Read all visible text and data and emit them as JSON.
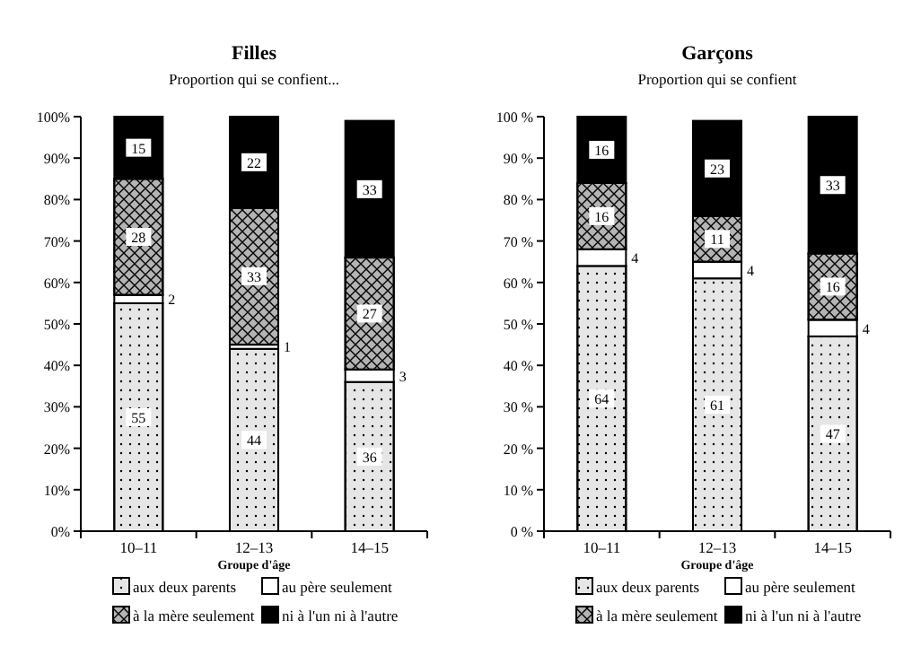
{
  "chart_data": [
    {
      "type": "bar",
      "stacked": true,
      "title": "Filles",
      "subtitle": "Proportion qui se confient...",
      "xlabel": "Groupe d'âge",
      "categories": [
        "10–11",
        "12–13",
        "14–15"
      ],
      "ylim": [
        0,
        100
      ],
      "yticks": [
        {
          "value": 0,
          "label": "0%"
        },
        {
          "value": 10,
          "label": "10%"
        },
        {
          "value": 20,
          "label": "20%"
        },
        {
          "value": 30,
          "label": "30%"
        },
        {
          "value": 40,
          "label": "40%"
        },
        {
          "value": 50,
          "label": "50%"
        },
        {
          "value": 60,
          "label": "60%"
        },
        {
          "value": 70,
          "label": "70%"
        },
        {
          "value": 80,
          "label": "80%"
        },
        {
          "value": 90,
          "label": "90%"
        },
        {
          "value": 100,
          "label": "100%"
        }
      ],
      "legend": "bottom",
      "series": [
        {
          "name": "aux deux parents",
          "color": "#e6e6e6",
          "values": [
            55,
            44,
            36
          ],
          "value_labels": [
            "55",
            "44",
            "36"
          ]
        },
        {
          "name": "au père seulement",
          "color": "#ffffff",
          "values": [
            2,
            1,
            3
          ],
          "value_labels": [
            "2",
            "1",
            "3"
          ]
        },
        {
          "name": "à la mère seulement",
          "color": "#b4b4b4",
          "values": [
            28,
            33,
            27
          ],
          "value_labels": [
            "28",
            "33",
            "27"
          ]
        },
        {
          "name": "ni à l'un ni à l'autre",
          "color": "#000000",
          "values": [
            15,
            22,
            33
          ],
          "value_labels": [
            "15",
            "22",
            "33"
          ]
        }
      ]
    },
    {
      "type": "bar",
      "stacked": true,
      "title": "Garçons",
      "subtitle": "Proportion qui se confient",
      "xlabel": "Groupe d'âge",
      "categories": [
        "10–11",
        "12–13",
        "14–15"
      ],
      "ylim": [
        0,
        100
      ],
      "yticks": [
        {
          "value": 0,
          "label": "0 %"
        },
        {
          "value": 10,
          "label": "10 %"
        },
        {
          "value": 20,
          "label": "20 %"
        },
        {
          "value": 30,
          "label": "30 %"
        },
        {
          "value": 40,
          "label": "40 %"
        },
        {
          "value": 50,
          "label": "50 %"
        },
        {
          "value": 60,
          "label": "60 %"
        },
        {
          "value": 70,
          "label": "70 %"
        },
        {
          "value": 80,
          "label": "80 %"
        },
        {
          "value": 90,
          "label": "90 %"
        },
        {
          "value": 100,
          "label": "100 %"
        }
      ],
      "legend": "bottom",
      "series": [
        {
          "name": "aux deux parents",
          "color": "#e6e6e6",
          "values": [
            64,
            61,
            47
          ],
          "value_labels": [
            "64",
            "61",
            "47"
          ]
        },
        {
          "name": "au père seulement",
          "color": "#ffffff",
          "values": [
            4,
            4,
            4
          ],
          "value_labels": [
            "4",
            "4",
            "4"
          ]
        },
        {
          "name": "à la mère seulement",
          "color": "#b4b4b4",
          "values": [
            16,
            11,
            16
          ],
          "value_labels": [
            "16",
            "11",
            "16"
          ]
        },
        {
          "name": "ni à l'un ni à l'autre",
          "color": "#000000",
          "values": [
            16,
            23,
            33
          ],
          "value_labels": [
            "16",
            "23",
            "33"
          ]
        }
      ]
    }
  ]
}
